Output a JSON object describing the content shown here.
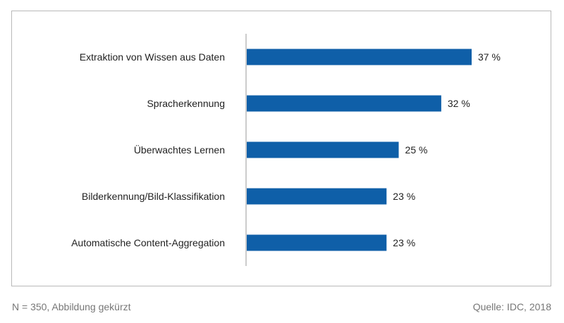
{
  "chart_data": {
    "type": "bar",
    "orientation": "horizontal",
    "categories": [
      "Extraktion von Wissen aus Daten",
      "Spracherkennung",
      "Überwachtes Lernen",
      "Bilderkennung/Bild-Klassifikation",
      "Automatische Content-Aggregation"
    ],
    "values": [
      37,
      32,
      25,
      23,
      23
    ],
    "value_labels": [
      "37 %",
      "32 %",
      "25 %",
      "23 %",
      "23 %"
    ],
    "unit": "%",
    "title": "",
    "xlabel": "",
    "ylabel": "",
    "xlim": [
      0,
      40
    ],
    "grid": false,
    "bar_color": "#0f5fa8"
  },
  "footer": {
    "note": "N = 350, Abbildung gekürzt",
    "source": "Quelle: IDC, 2018"
  }
}
